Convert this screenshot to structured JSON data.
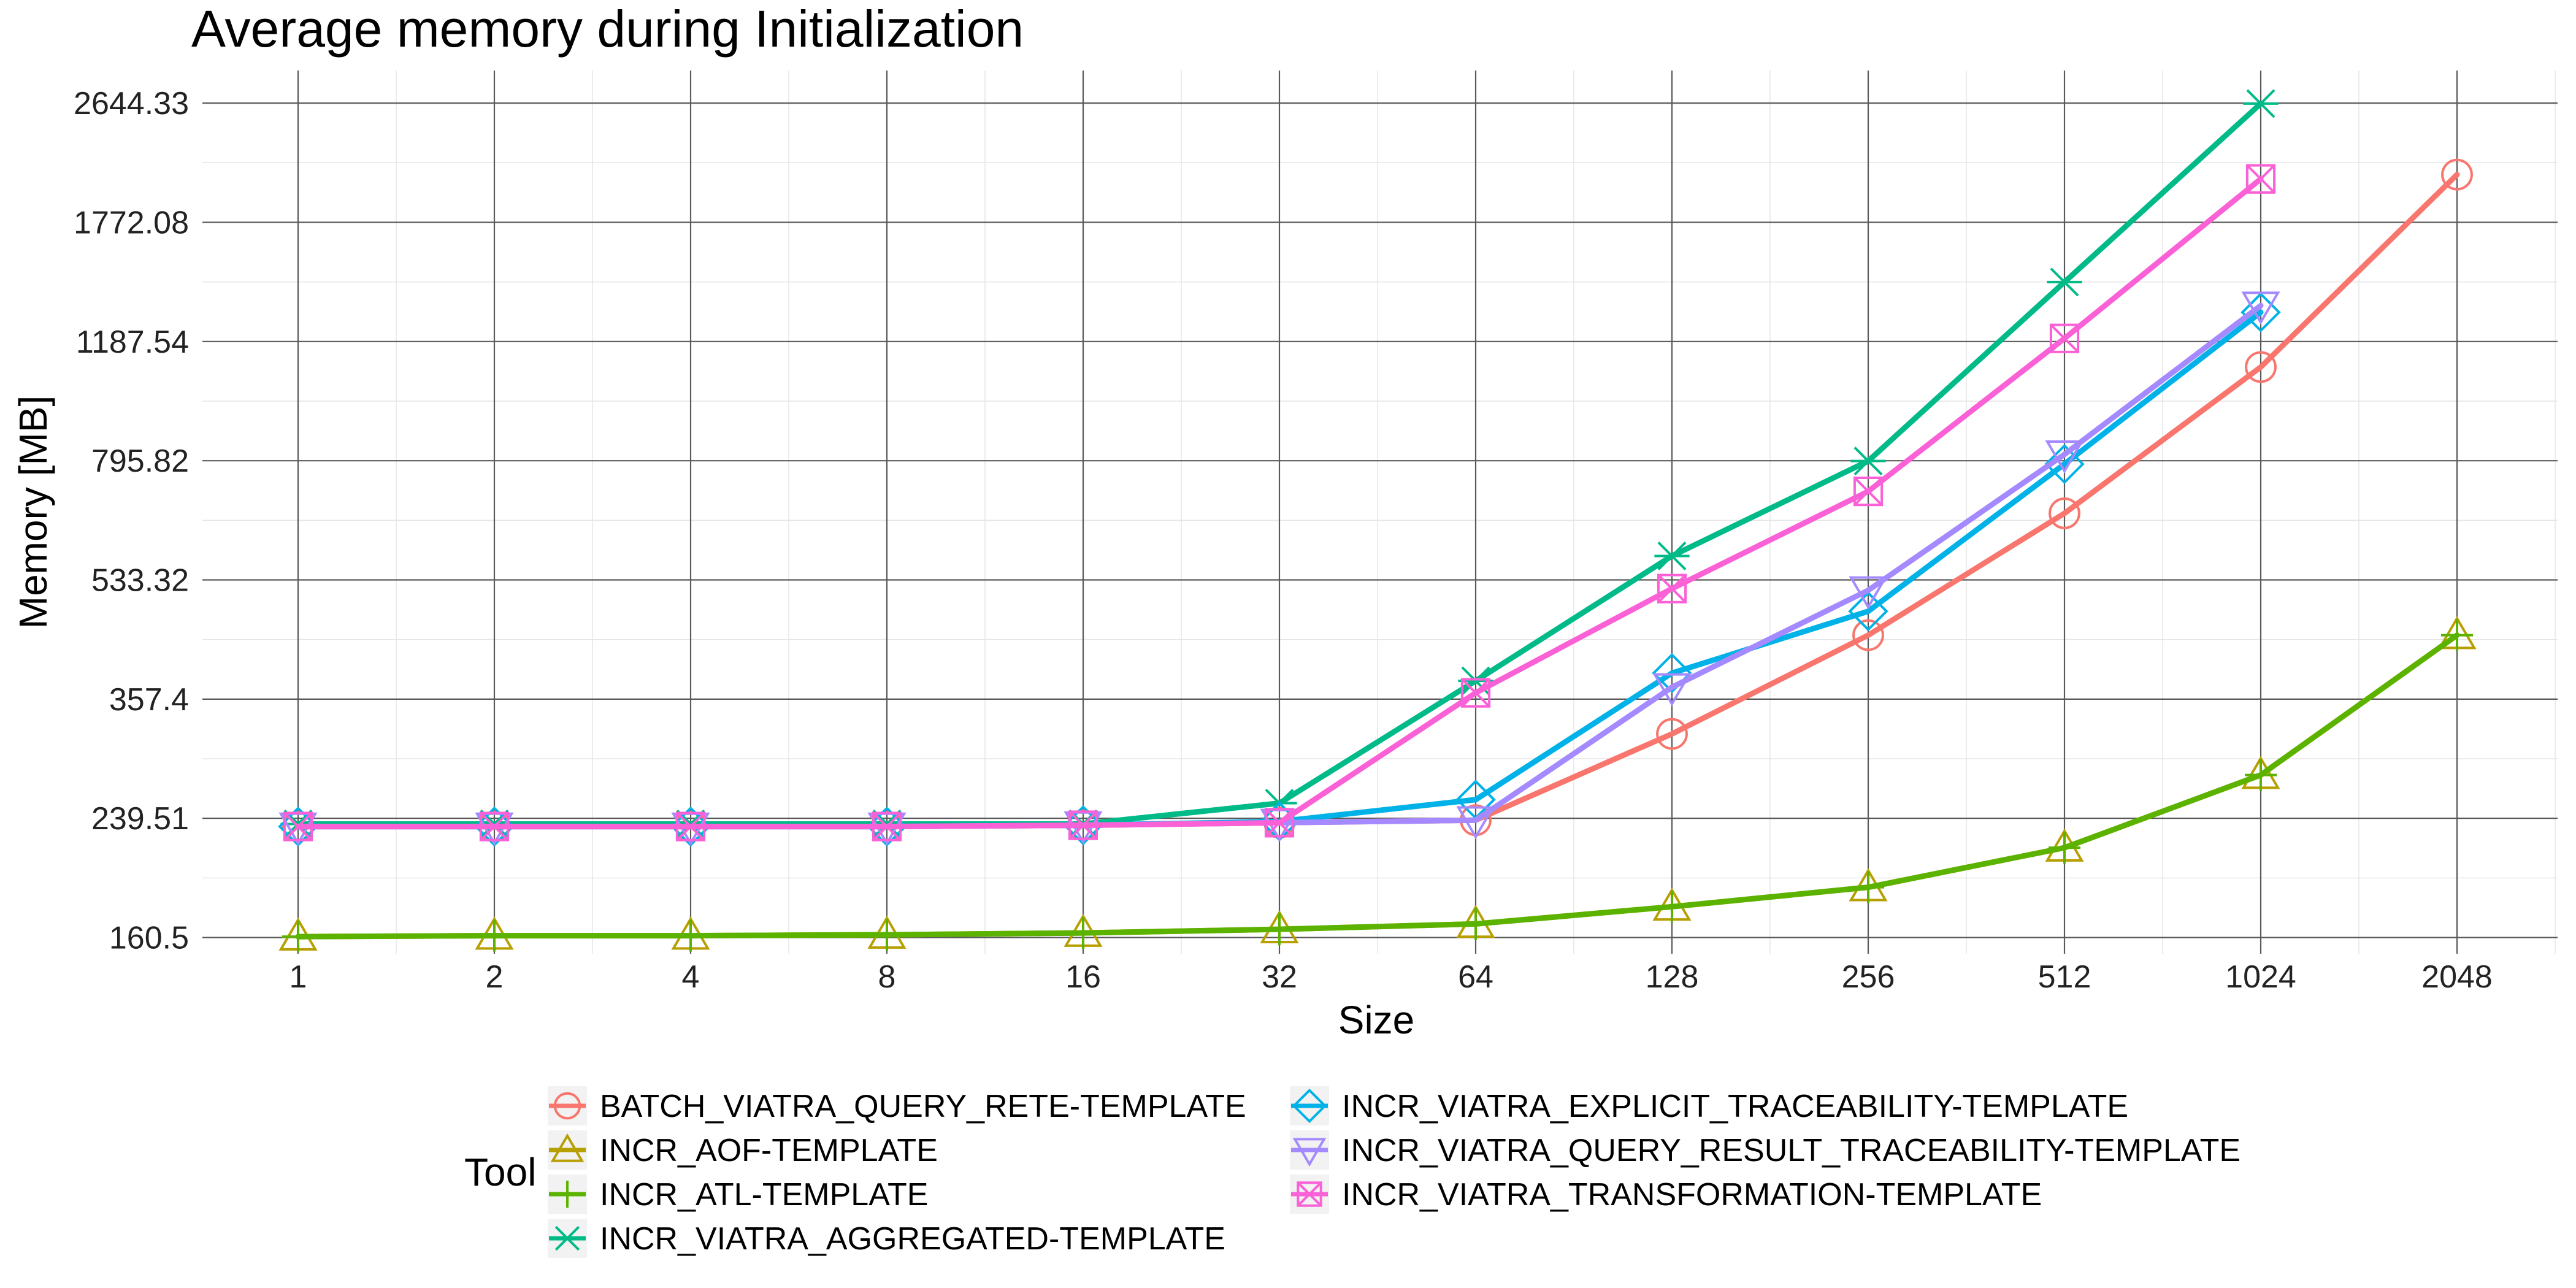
{
  "chart_data": {
    "type": "line",
    "title": "Average memory during Initialization",
    "xlabel": "Size",
    "ylabel": "Memory [MB]",
    "x_scale": "log2",
    "y_scale": "log",
    "categories": [
      "1",
      "2",
      "4",
      "8",
      "16",
      "32",
      "64",
      "128",
      "256",
      "512",
      "1024",
      "2048"
    ],
    "y_ticks": [
      "160.5",
      "239.51",
      "357.4",
      "533.32",
      "795.82",
      "1187.54",
      "1772.08",
      "2644.33"
    ],
    "ylim": [
      152,
      2950
    ],
    "grid": true,
    "legend": {
      "title": "Tool",
      "placement": "bottom"
    },
    "series": [
      {
        "name": "BATCH_VIATRA_QUERY_RETE-TEMPLATE",
        "color": "#F8766D",
        "shape": "circle",
        "x": [
          1,
          2,
          4,
          8,
          16,
          32,
          64,
          128,
          256,
          512,
          1024,
          2048
        ],
        "values": [
          233,
          233,
          233,
          233,
          234,
          236,
          238,
          318,
          443,
          667,
          1090,
          2080
        ]
      },
      {
        "name": "INCR_AOF-TEMPLATE",
        "color": "#B79F00",
        "shape": "triangle-up",
        "x": [
          1,
          2,
          4,
          8,
          16,
          32,
          64,
          128,
          256,
          512,
          1024,
          2048
        ],
        "values": [
          161,
          161.5,
          161.5,
          162,
          163,
          165,
          168,
          178,
          190,
          217,
          277,
          443
        ]
      },
      {
        "name": "INCR_ATL-TEMPLATE",
        "color": "#5BB300",
        "shape": "plus",
        "x": [
          1,
          2,
          4,
          8,
          16,
          32,
          64,
          128,
          256,
          512,
          1024,
          2048
        ],
        "values": [
          161,
          161.5,
          161.5,
          162,
          163,
          165,
          168,
          178,
          190,
          217,
          277,
          443
        ]
      },
      {
        "name": "INCR_VIATRA_AGGREGATED-TEMPLATE",
        "color": "#00BA88",
        "shape": "x",
        "x": [
          1,
          2,
          4,
          8,
          16,
          32,
          64,
          128,
          256,
          512,
          1024
        ],
        "values": [
          235,
          235,
          235,
          235,
          235,
          252,
          380,
          578,
          795,
          1450,
          2640
        ]
      },
      {
        "name": "INCR_VIATRA_EXPLICIT_TRACEABILITY-TEMPLATE",
        "color": "#00B2E8",
        "shape": "diamond",
        "x": [
          1,
          2,
          4,
          8,
          16,
          32,
          64,
          128,
          256,
          512,
          1024
        ],
        "values": [
          233,
          233,
          233,
          233,
          234,
          237,
          255,
          390,
          480,
          787,
          1310
        ]
      },
      {
        "name": "INCR_VIATRA_QUERY_RESULT_TRACEABILITY-TEMPLATE",
        "color": "#A58AFF",
        "shape": "triangle-down",
        "x": [
          1,
          2,
          4,
          8,
          16,
          32,
          64,
          128,
          256,
          512,
          1024
        ],
        "values": [
          233,
          233,
          233,
          233,
          234,
          236,
          238,
          372,
          515,
          813,
          1340
        ]
      },
      {
        "name": "INCR_VIATRA_TRANSFORMATION-TEMPLATE",
        "color": "#FB61D7",
        "shape": "square-cross",
        "x": [
          1,
          2,
          4,
          8,
          16,
          32,
          64,
          128,
          256,
          512,
          1024
        ],
        "values": [
          233,
          233,
          233,
          233,
          234,
          236,
          365,
          518,
          718,
          1200,
          2050
        ]
      }
    ]
  }
}
